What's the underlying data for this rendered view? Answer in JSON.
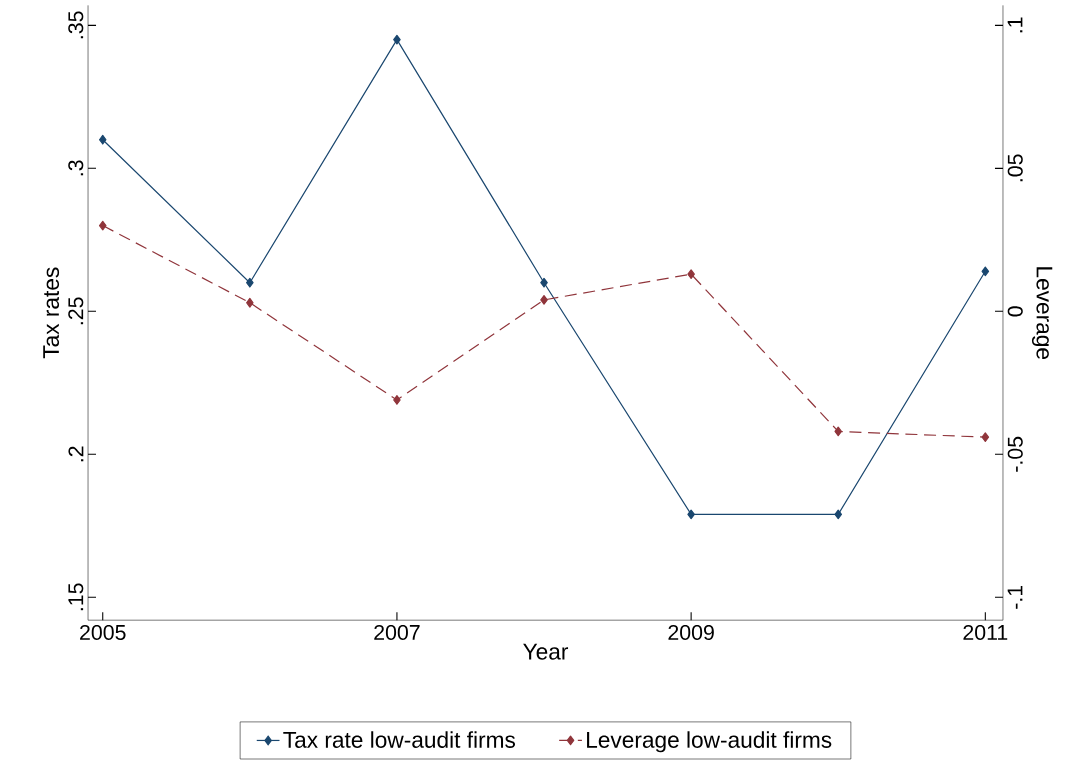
{
  "chart_data": {
    "type": "line",
    "x": [
      2005,
      2006,
      2007,
      2008,
      2009,
      2010,
      2011
    ],
    "series": [
      {
        "name": "Tax rate low-audit firms",
        "color": "#1a476f",
        "line_style": "solid",
        "values": [
          0.31,
          0.26,
          0.345,
          0.26,
          0.179,
          0.179,
          0.264
        ]
      },
      {
        "name": "Leverage low-audit firms",
        "color": "#90353b",
        "line_style": "dashed",
        "axis": "y2",
        "values": [
          0.03,
          0.003,
          -0.031,
          0.004,
          0.013,
          -0.042,
          -0.044
        ]
      }
    ],
    "xlabel": "Year",
    "ylabel": "Tax rates",
    "y2label": "Leverage",
    "xlim": [
      2004.9,
      2011.12
    ],
    "xticks": [
      2005,
      2007,
      2009,
      2011
    ],
    "ylim": [
      0.142,
      0.357
    ],
    "yticks": [
      {
        "value": 0.15,
        "label": ".15"
      },
      {
        "value": 0.2,
        "label": ".2"
      },
      {
        "value": 0.25,
        "label": ".25"
      },
      {
        "value": 0.3,
        "label": ".3"
      },
      {
        "value": 0.35,
        "label": ".35"
      }
    ],
    "y2lim": [
      -0.108,
      0.107
    ],
    "y2ticks": [
      {
        "value": -0.1,
        "label": "-.1"
      },
      {
        "value": -0.05,
        "label": "-.05"
      },
      {
        "value": 0,
        "label": "0"
      },
      {
        "value": 0.05,
        "label": ".05"
      },
      {
        "value": 0.1,
        "label": ".1"
      }
    ],
    "marker": "diamond",
    "legend": "bottom",
    "grid": false
  }
}
